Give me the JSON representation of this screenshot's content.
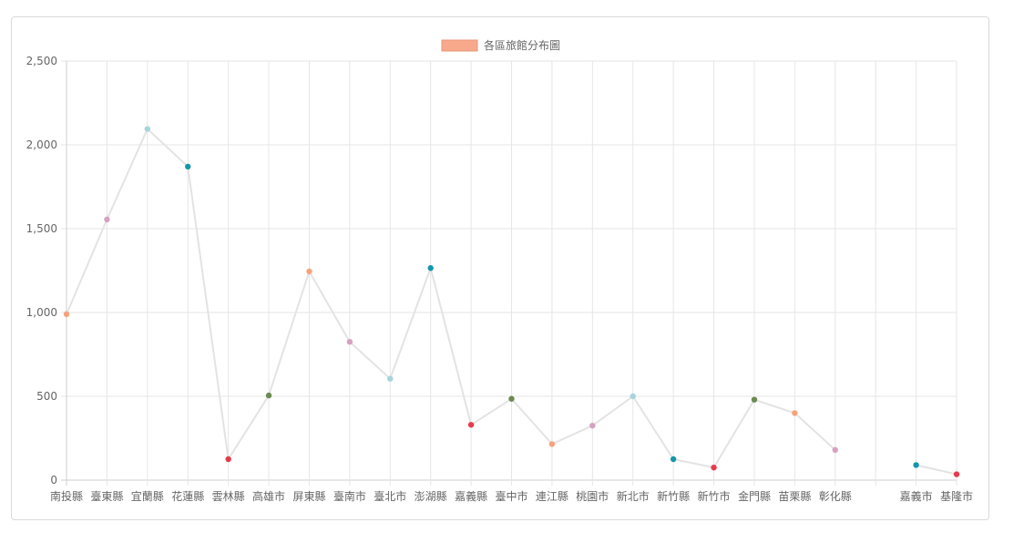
{
  "chart_data": {
    "type": "line",
    "series": [
      {
        "name": "各區旅館分布圖",
        "legend_box_color": "#f8a98b",
        "line_color": "#e3e3e3",
        "values": [
          990,
          1555,
          2095,
          1870,
          125,
          505,
          1245,
          825,
          605,
          1265,
          330,
          485,
          215,
          325,
          500,
          125,
          75,
          480,
          400,
          180,
          null,
          90,
          35
        ],
        "point_colors": [
          "#f5a27c",
          "#d7a1c1",
          "#a8d4dc",
          "#1596aa",
          "#e83a4c",
          "#6c8a52",
          "#f5a27c",
          "#d7a1c1",
          "#a8d4dc",
          "#1596aa",
          "#e83a4c",
          "#6c8a52",
          "#f5a27c",
          "#d7a1c1",
          "#a8d4dc",
          "#1596aa",
          "#e83a4c",
          "#6c8a52",
          "#f5a27c",
          "#d7a1c1",
          "#a8d4dc",
          "#1596aa",
          "#e83a4c"
        ]
      }
    ],
    "categories": [
      "南投縣",
      "臺東縣",
      "宜蘭縣",
      "花蓮縣",
      "雲林縣",
      "高雄市",
      "屏東縣",
      "臺南市",
      "臺北市",
      "澎湖縣",
      "嘉義縣",
      "臺中市",
      "連江縣",
      "桃園市",
      "新北市",
      "新竹縣",
      "新竹市",
      "金門縣",
      "苗栗縣",
      "彰化縣",
      "",
      "嘉義市",
      "基隆市"
    ],
    "yticks": [
      "0",
      "500",
      "1,000",
      "1,500",
      "2,000",
      "2,500"
    ],
    "ylim": [
      0,
      2500
    ],
    "grid": true,
    "legend_position": "top-center"
  }
}
